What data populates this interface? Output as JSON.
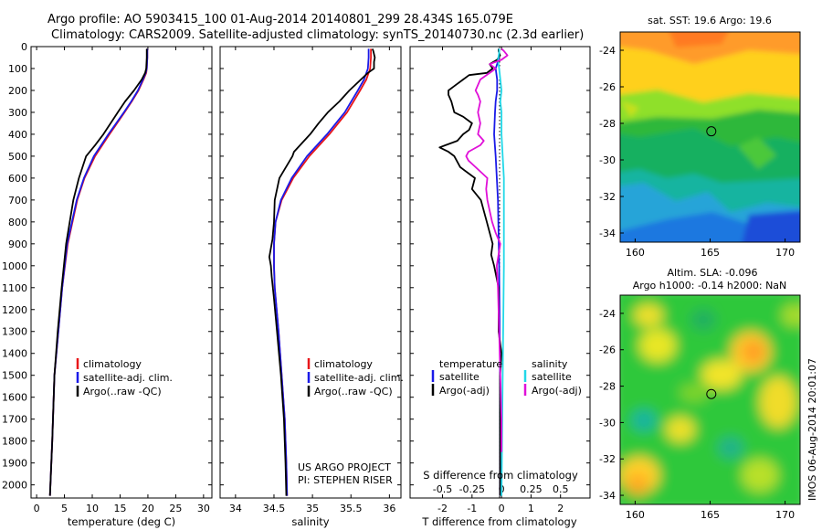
{
  "header": {
    "title_line1": "Argo profile: AO 5903415_100 01-Aug-2014 20140801_299 28.434S 165.079E",
    "title_line2": "Climatology: CARS2009. Satellite-adjusted climatology: synTS_20140730.nc (2.3d earlier)"
  },
  "colors": {
    "climatology": "#e8161a",
    "satellite": "#1a1ae8",
    "argo": "#000000",
    "sal_satellite": "#22d8e8",
    "sal_argo": "#e010d8"
  },
  "chart_data": [
    {
      "id": "temperature",
      "type": "line",
      "xlabel": "temperature (deg C)",
      "ylabel": "",
      "xlim": [
        -1,
        31.5
      ],
      "ylim": [
        2060,
        0
      ],
      "xticks": [
        "0",
        "5",
        "10",
        "15",
        "20",
        "25",
        "30"
      ],
      "yticks": [
        "0",
        "100",
        "200",
        "300",
        "400",
        "500",
        "600",
        "700",
        "800",
        "900",
        "1000",
        "1100",
        "1200",
        "1300",
        "1400",
        "1500",
        "1600",
        "1700",
        "1800",
        "1900",
        "2000"
      ],
      "legend": [
        "climatology",
        "satellite-adj. clim.",
        "Argo(..raw -QC)"
      ],
      "legend_position": "lower-center",
      "series": [
        {
          "name": "climatology",
          "color": "#e8161a",
          "depth": [
            2050,
            1800,
            1500,
            1300,
            1100,
            900,
            700,
            600,
            500,
            400,
            300,
            250,
            200,
            150,
            120,
            100,
            50,
            10
          ],
          "values": [
            2.4,
            2.8,
            3.2,
            3.9,
            4.6,
            5.6,
            7.3,
            8.6,
            10.5,
            13.1,
            15.8,
            17.1,
            18.3,
            19.2,
            19.7,
            19.8,
            19.9,
            19.9
          ]
        },
        {
          "name": "satellite-adj. clim.",
          "color": "#1a1ae8",
          "depth": [
            2050,
            1800,
            1500,
            1300,
            1100,
            900,
            700,
            600,
            500,
            400,
            300,
            250,
            200,
            150,
            120,
            100,
            50,
            10
          ],
          "values": [
            2.4,
            2.8,
            3.2,
            3.9,
            4.6,
            5.5,
            7.2,
            8.5,
            10.3,
            12.9,
            15.7,
            17.0,
            18.2,
            19.1,
            19.6,
            19.8,
            19.9,
            19.9
          ]
        },
        {
          "name": "Argo(..raw -QC)",
          "color": "#000000",
          "depth": [
            2050,
            1800,
            1500,
            1300,
            1100,
            900,
            700,
            600,
            500,
            450,
            400,
            300,
            250,
            200,
            150,
            120,
            100,
            50,
            10
          ],
          "values": [
            2.4,
            2.8,
            3.2,
            3.8,
            4.5,
            5.3,
            6.6,
            7.6,
            8.9,
            10.5,
            12.0,
            14.6,
            15.9,
            17.5,
            18.9,
            19.5,
            19.7,
            19.8,
            19.8
          ]
        }
      ]
    },
    {
      "id": "salinity",
      "type": "line",
      "xlabel": "salinity",
      "ylabel": "",
      "xlim": [
        33.8,
        36.15
      ],
      "ylim": [
        2060,
        0
      ],
      "xticks": [
        "34",
        "34.5",
        "35",
        "35.5",
        "36"
      ],
      "legend": [
        "climatology",
        "satellite-adj. clim.",
        "Argo(..raw -QC)"
      ],
      "legend_position": "lower-center",
      "annotations": [
        "US ARGO PROJECT",
        "PI: STEPHEN RISER"
      ],
      "series": [
        {
          "name": "climatology",
          "color": "#e8161a",
          "depth": [
            2050,
            1900,
            1700,
            1500,
            1300,
            1100,
            1000,
            950,
            900,
            800,
            700,
            600,
            500,
            400,
            300,
            200,
            150,
            100,
            50,
            10
          ],
          "values": [
            34.67,
            34.66,
            34.64,
            34.6,
            34.56,
            34.51,
            34.5,
            34.5,
            34.5,
            34.52,
            34.6,
            34.75,
            34.96,
            35.22,
            35.45,
            35.62,
            35.7,
            35.75,
            35.76,
            35.76
          ]
        },
        {
          "name": "satellite-adj. clim.",
          "color": "#1a1ae8",
          "depth": [
            2050,
            1900,
            1700,
            1500,
            1300,
            1100,
            1000,
            950,
            900,
            800,
            700,
            600,
            500,
            400,
            300,
            200,
            150,
            100,
            50,
            10
          ],
          "values": [
            34.67,
            34.66,
            34.64,
            34.6,
            34.56,
            34.51,
            34.5,
            34.5,
            34.5,
            34.52,
            34.59,
            34.73,
            34.93,
            35.19,
            35.42,
            35.59,
            35.67,
            35.72,
            35.73,
            35.73
          ]
        },
        {
          "name": "Argo(..raw -QC)",
          "color": "#000000",
          "depth": [
            2050,
            1900,
            1700,
            1500,
            1300,
            1150,
            1050,
            1000,
            960,
            920,
            880,
            800,
            700,
            600,
            500,
            480,
            400,
            350,
            300,
            250,
            200,
            150,
            120,
            100,
            70,
            50,
            20,
            10
          ],
          "values": [
            34.66,
            34.65,
            34.63,
            34.59,
            34.54,
            34.5,
            34.47,
            34.46,
            34.44,
            34.46,
            34.48,
            34.5,
            34.51,
            34.57,
            34.74,
            34.76,
            34.97,
            35.08,
            35.2,
            35.35,
            35.48,
            35.63,
            35.72,
            35.8,
            35.8,
            35.81,
            35.79,
            35.78
          ]
        }
      ]
    },
    {
      "id": "difference",
      "type": "line",
      "xlabel": "T difference from climatology",
      "x2label": "S difference from climatology",
      "xlim": [
        -3.1,
        3.0
      ],
      "x2lim": [
        -0.775,
        0.75
      ],
      "ylim": [
        2060,
        0
      ],
      "xticks": [
        "-2",
        "-1",
        "0",
        "1",
        "2"
      ],
      "x2ticks": [
        "-0.5",
        "-0.25",
        "0",
        "0.25",
        "0.5"
      ],
      "legend_temperature": {
        "header": "temperature",
        "items": [
          "satellite",
          "Argo(-adj)"
        ]
      },
      "legend_salinity": {
        "header": "salinity",
        "items": [
          "satellite",
          "Argo(-adj)"
        ]
      },
      "series": [
        {
          "name": "temperature satellite",
          "color": "#1a1ae8",
          "depth": [
            2050,
            1500,
            1000,
            700,
            500,
            400,
            300,
            250,
            200,
            150,
            100,
            60,
            30,
            10
          ],
          "values": [
            -0.05,
            -0.05,
            -0.08,
            -0.12,
            -0.2,
            -0.25,
            -0.22,
            -0.2,
            -0.15,
            -0.15,
            -0.2,
            -0.1,
            -0.08,
            -0.1
          ]
        },
        {
          "name": "temperature Argo(-adj)",
          "color": "#000000",
          "depth": [
            2050,
            1800,
            1500,
            1400,
            1300,
            1200,
            1100,
            1000,
            950,
            900,
            800,
            700,
            650,
            600,
            550,
            500,
            480,
            460,
            450,
            430,
            400,
            380,
            350,
            320,
            300,
            250,
            220,
            200,
            180,
            150,
            130,
            120,
            100,
            80,
            60,
            40,
            20,
            10
          ],
          "values": [
            -0.05,
            -0.05,
            -0.05,
            0,
            -0.1,
            -0.1,
            -0.1,
            -0.25,
            -0.35,
            -0.3,
            -0.5,
            -0.7,
            -1.0,
            -0.9,
            -1.4,
            -1.6,
            -1.8,
            -2.1,
            -1.9,
            -1.5,
            -1.3,
            -1.1,
            -1.0,
            -1.3,
            -1.6,
            -1.7,
            -1.8,
            -1.8,
            -1.6,
            -1.3,
            -1.1,
            -0.5,
            -0.3,
            -0.4,
            -0.15,
            -0.05,
            -0.1,
            -0.1
          ]
        },
        {
          "name": "salinity satellite",
          "color": "#22d8e8",
          "depth": [
            2050,
            1500,
            1000,
            800,
            600,
            500,
            400,
            300,
            250,
            200,
            150,
            100,
            60,
            30,
            10
          ],
          "values": [
            0.0,
            0.01,
            0.02,
            0.02,
            0.02,
            0.01,
            0.0,
            0.0,
            -0.01,
            0.0,
            -0.01,
            -0.02,
            -0.03,
            -0.02,
            -0.02
          ]
        },
        {
          "name": "salinity Argo(-adj)",
          "color": "#e010d8",
          "depth": [
            1850,
            1700,
            1500,
            1300,
            1100,
            1000,
            900,
            850,
            800,
            750,
            700,
            650,
            600,
            550,
            520,
            500,
            480,
            450,
            430,
            400,
            350,
            300,
            250,
            220,
            200,
            150,
            120,
            100,
            80,
            60,
            40,
            20,
            10
          ],
          "values": [
            0.0,
            0.0,
            -0.01,
            -0.02,
            -0.03,
            -0.04,
            -0.01,
            -0.05,
            -0.08,
            -0.1,
            -0.12,
            -0.13,
            -0.12,
            -0.22,
            -0.28,
            -0.3,
            -0.28,
            -0.18,
            -0.15,
            -0.2,
            -0.18,
            -0.2,
            -0.18,
            -0.2,
            -0.22,
            -0.18,
            -0.1,
            -0.05,
            -0.1,
            0.0,
            0.05,
            0.02,
            0.0
          ]
        }
      ]
    },
    {
      "id": "sst_map",
      "type": "heatmap",
      "title": "sat. SST: 19.6  Argo: 19.6",
      "xlim": [
        159,
        171
      ],
      "ylim": [
        -34.5,
        -23
      ],
      "xticks": [
        "160",
        "165",
        "170"
      ],
      "yticks": [
        "-24",
        "-26",
        "-28",
        "-30",
        "-32",
        "-34"
      ],
      "marker": {
        "lon": 165.079,
        "lat": -28.434
      }
    },
    {
      "id": "sla_map",
      "type": "heatmap",
      "title": "Altim. SLA: -0.096",
      "subtitle": "Argo h1000: -0.14  h2000: NaN",
      "xlim": [
        159,
        171
      ],
      "ylim": [
        -34.5,
        -23
      ],
      "xticks": [
        "160",
        "165",
        "170"
      ],
      "yticks": [
        "-24",
        "-26",
        "-28",
        "-30",
        "-32",
        "-34"
      ],
      "marker": {
        "lon": 165.079,
        "lat": -28.434
      }
    }
  ],
  "footer": {
    "vertical_stamp": "IMOS 06-Aug-2014 20:01:07"
  }
}
